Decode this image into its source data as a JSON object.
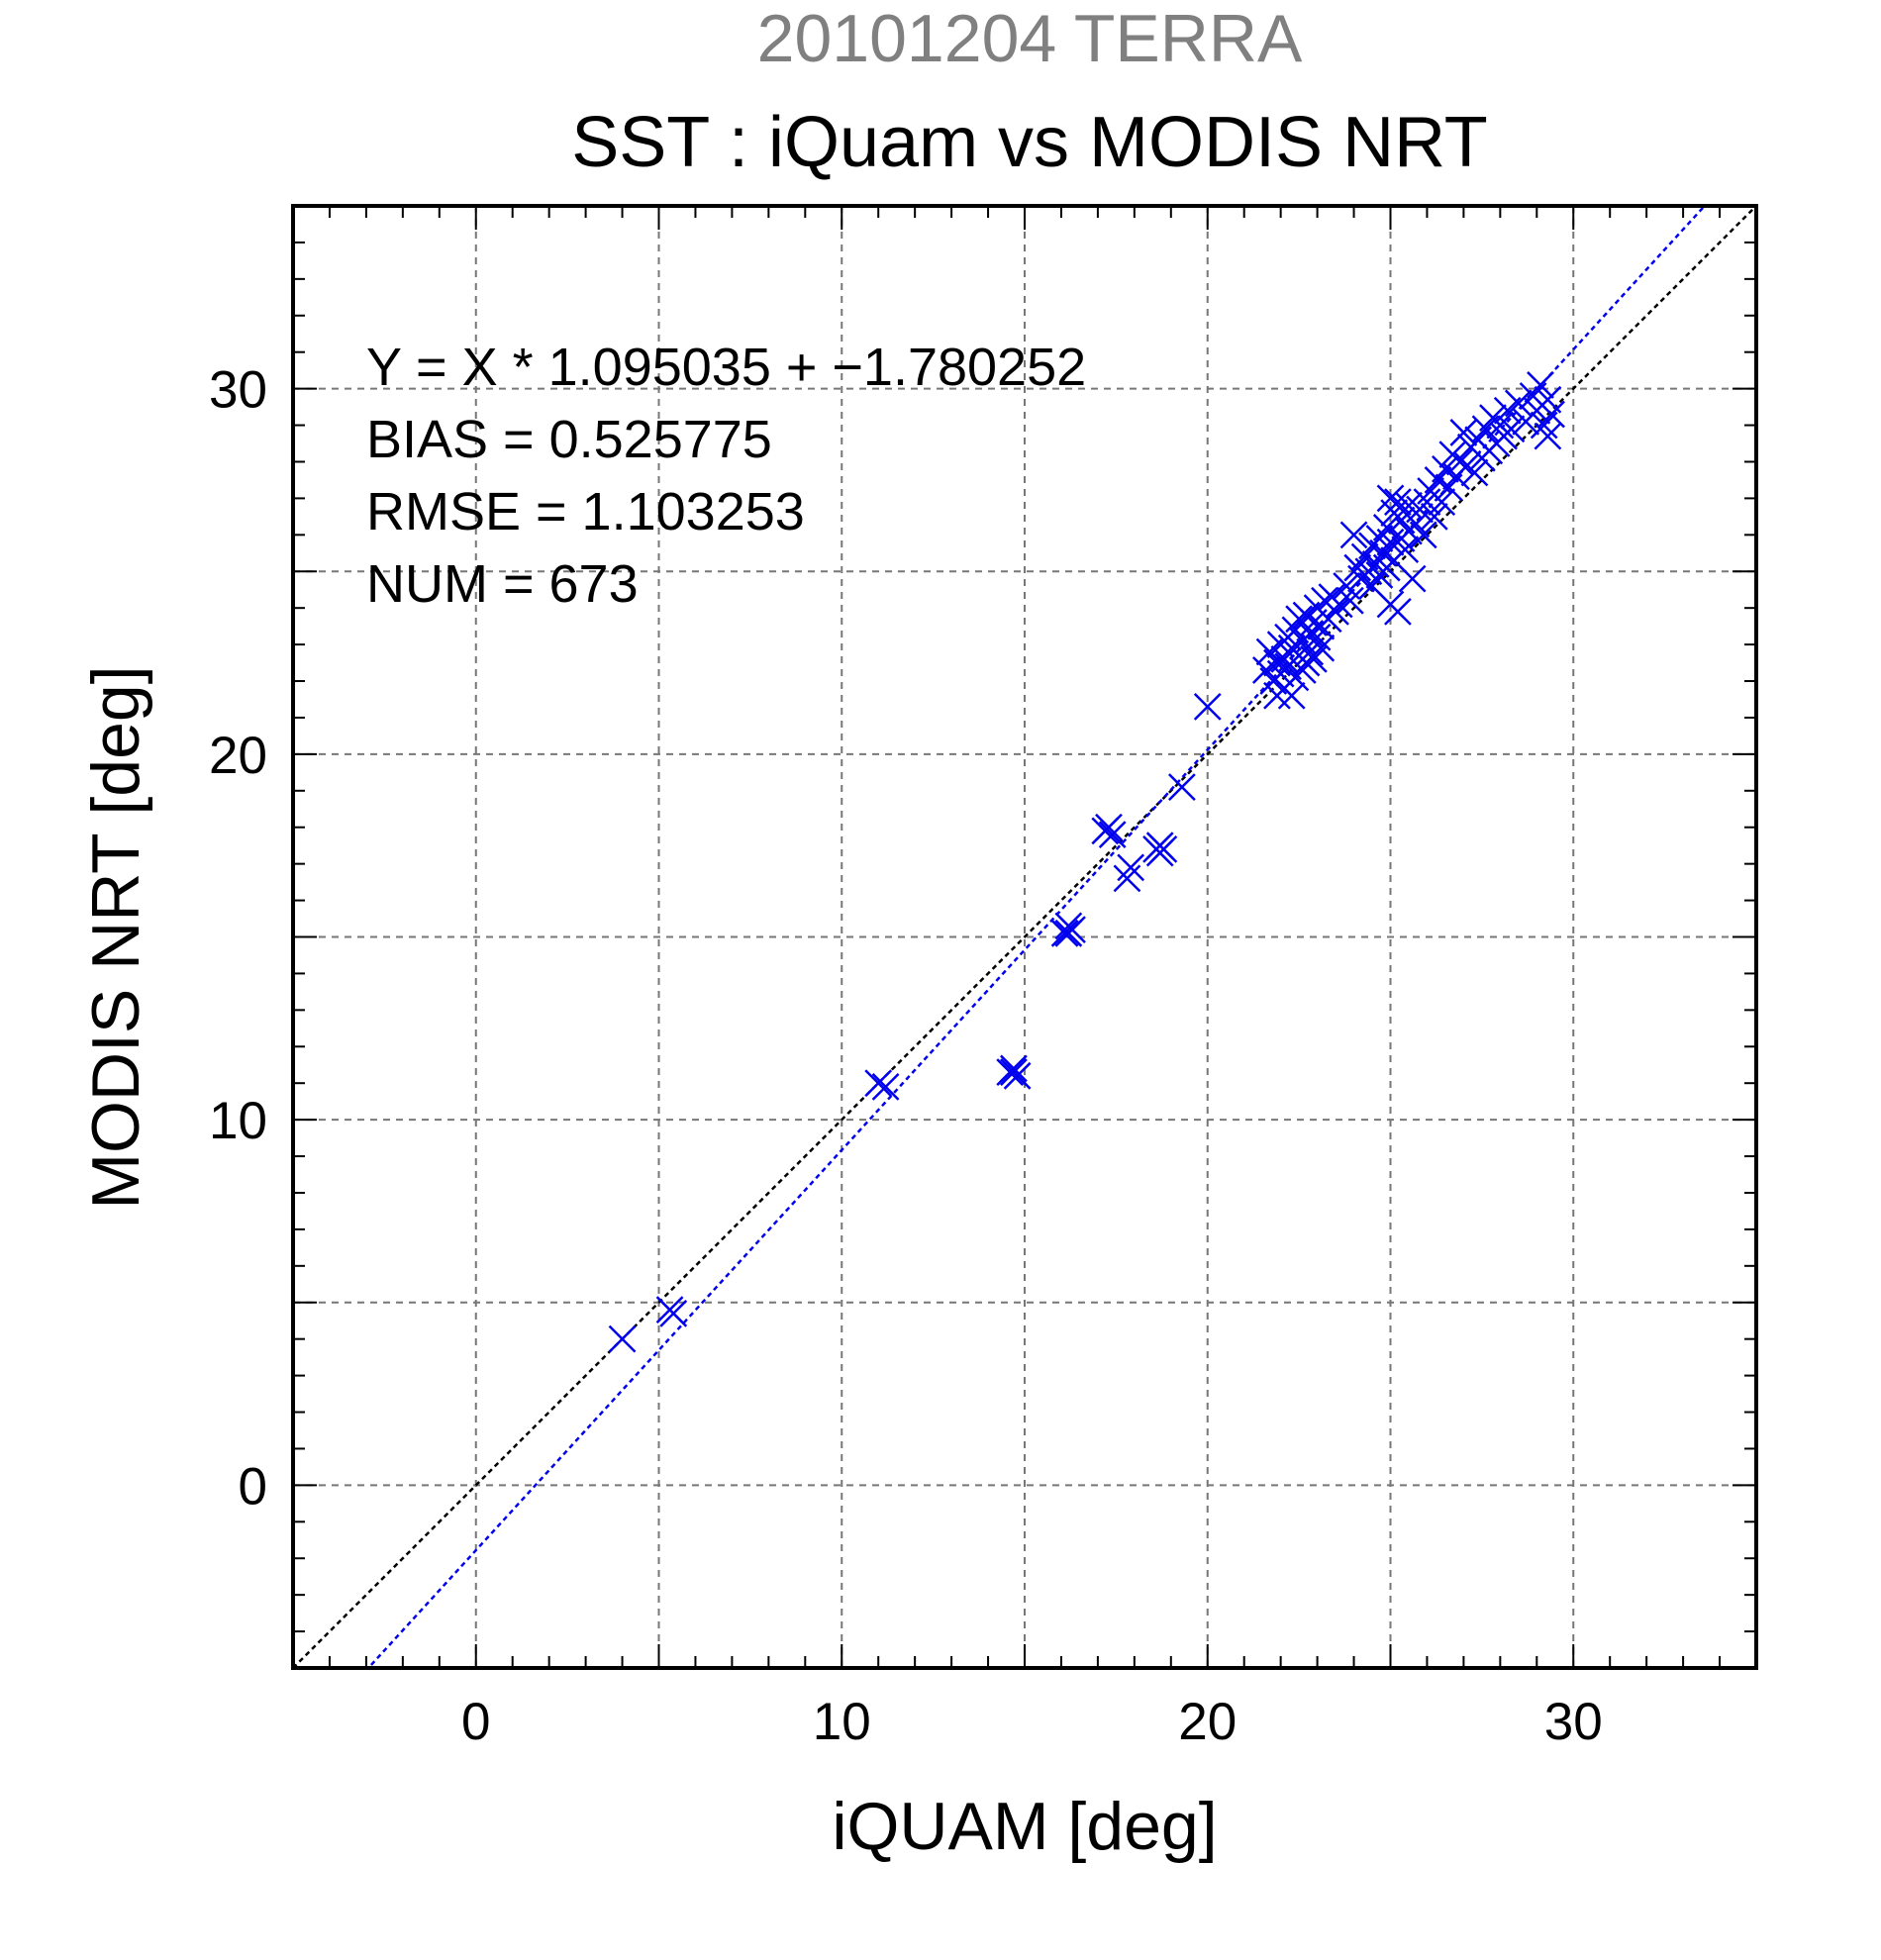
{
  "header": {
    "date_label": "20101204 TERRA",
    "title": "SST : iQuam vs MODIS NRT"
  },
  "stats": {
    "equation": "Y = X * 1.095035 + −1.780252",
    "bias": "BIAS = 0.525775",
    "rmse": "RMSE = 1.103253",
    "num": "NUM = 673"
  },
  "colors": {
    "marker": "#0000ee",
    "regression_line": "#0000ee",
    "identity_line": "#000000",
    "grid": "#777777",
    "date_label": "#808080"
  },
  "chart_data": {
    "type": "scatter",
    "title": "SST : iQuam vs MODIS NRT",
    "subtitle": "20101204 TERRA",
    "xlabel": "iQUAM [deg]",
    "ylabel": "MODIS NRT [deg]",
    "xlim": [
      -5,
      35
    ],
    "ylim": [
      -5,
      35
    ],
    "xticks": [
      0,
      10,
      20,
      30
    ],
    "yticks": [
      0,
      10,
      20,
      30
    ],
    "grid": true,
    "marker": "x",
    "regression": {
      "slope": 1.095035,
      "intercept": -1.780252
    },
    "identity_line": true,
    "series": [
      {
        "points": [
          [
            4.0,
            4.0
          ],
          [
            5.3,
            4.8
          ],
          [
            5.4,
            4.7
          ],
          [
            11.0,
            11.0
          ],
          [
            11.2,
            10.9
          ],
          [
            14.6,
            11.3
          ],
          [
            14.7,
            11.4
          ],
          [
            14.8,
            11.2
          ],
          [
            14.7,
            11.3
          ],
          [
            16.1,
            15.1
          ],
          [
            16.2,
            15.3
          ],
          [
            16.3,
            15.2
          ],
          [
            16.2,
            15.1
          ],
          [
            17.2,
            17.9
          ],
          [
            17.3,
            18.0
          ],
          [
            17.4,
            17.8
          ],
          [
            17.8,
            16.6
          ],
          [
            17.9,
            16.9
          ],
          [
            18.6,
            17.4
          ],
          [
            18.7,
            17.5
          ],
          [
            18.8,
            17.4
          ],
          [
            18.7,
            17.3
          ],
          [
            19.3,
            19.1
          ],
          [
            20.0,
            21.3
          ],
          [
            21.6,
            22.3
          ],
          [
            21.7,
            22.8
          ],
          [
            21.8,
            22.0
          ],
          [
            21.9,
            21.6
          ],
          [
            21.9,
            22.5
          ],
          [
            22.0,
            23.0
          ],
          [
            22.0,
            22.2
          ],
          [
            22.1,
            21.8
          ],
          [
            22.1,
            22.6
          ],
          [
            22.2,
            23.2
          ],
          [
            22.2,
            22.4
          ],
          [
            22.3,
            21.6
          ],
          [
            22.3,
            22.9
          ],
          [
            22.4,
            23.4
          ],
          [
            22.4,
            22.1
          ],
          [
            22.5,
            22.7
          ],
          [
            22.5,
            23.7
          ],
          [
            22.6,
            22.3
          ],
          [
            22.6,
            23.1
          ],
          [
            22.7,
            22.5
          ],
          [
            22.7,
            23.8
          ],
          [
            22.8,
            23.3
          ],
          [
            22.8,
            22.8
          ],
          [
            22.9,
            23.6
          ],
          [
            22.9,
            22.6
          ],
          [
            23.0,
            24.0
          ],
          [
            23.0,
            23.2
          ],
          [
            23.1,
            22.9
          ],
          [
            23.1,
            23.5
          ],
          [
            23.2,
            24.2
          ],
          [
            23.3,
            23.7
          ],
          [
            23.4,
            24.3
          ],
          [
            23.5,
            23.9
          ],
          [
            23.6,
            24.1
          ],
          [
            23.8,
            24.6
          ],
          [
            23.9,
            24.2
          ],
          [
            24.0,
            26.0
          ],
          [
            24.1,
            25.1
          ],
          [
            24.2,
            24.8
          ],
          [
            24.3,
            25.4
          ],
          [
            24.4,
            25.0
          ],
          [
            24.5,
            25.7
          ],
          [
            24.5,
            24.6
          ],
          [
            24.6,
            25.2
          ],
          [
            24.7,
            25.9
          ],
          [
            24.7,
            24.9
          ],
          [
            24.8,
            25.5
          ],
          [
            24.9,
            26.2
          ],
          [
            24.9,
            25.1
          ],
          [
            25.0,
            24.1
          ],
          [
            25.0,
            25.8
          ],
          [
            25.0,
            27.0
          ],
          [
            25.1,
            26.6
          ],
          [
            25.1,
            25.3
          ],
          [
            25.2,
            23.9
          ],
          [
            25.2,
            26.9
          ],
          [
            25.3,
            25.9
          ],
          [
            25.3,
            26.4
          ],
          [
            25.4,
            25.6
          ],
          [
            25.5,
            26.1
          ],
          [
            25.5,
            26.8
          ],
          [
            25.6,
            24.8
          ],
          [
            25.7,
            26.3
          ],
          [
            25.8,
            26.7
          ],
          [
            25.9,
            26.0
          ],
          [
            26.0,
            26.9
          ],
          [
            26.1,
            27.2
          ],
          [
            26.2,
            26.5
          ],
          [
            26.3,
            27.5
          ],
          [
            26.4,
            26.9
          ],
          [
            26.5,
            27.8
          ],
          [
            26.6,
            27.3
          ],
          [
            26.7,
            28.2
          ],
          [
            26.8,
            27.6
          ],
          [
            26.9,
            28.0
          ],
          [
            27.0,
            28.8
          ],
          [
            27.1,
            27.9
          ],
          [
            27.2,
            28.4
          ],
          [
            27.3,
            27.7
          ],
          [
            27.4,
            28.6
          ],
          [
            27.5,
            28.1
          ],
          [
            27.6,
            28.9
          ],
          [
            27.7,
            28.3
          ],
          [
            27.8,
            29.2
          ],
          [
            27.9,
            28.5
          ],
          [
            28.0,
            29.0
          ],
          [
            28.1,
            28.7
          ],
          [
            28.2,
            29.4
          ],
          [
            28.3,
            28.9
          ],
          [
            28.5,
            29.6
          ],
          [
            28.7,
            29.1
          ],
          [
            28.9,
            29.8
          ],
          [
            29.0,
            29.4
          ],
          [
            29.1,
            30.1
          ],
          [
            29.2,
            29.0
          ],
          [
            29.3,
            29.7
          ],
          [
            29.3,
            28.7
          ],
          [
            29.4,
            29.3
          ]
        ]
      }
    ]
  }
}
